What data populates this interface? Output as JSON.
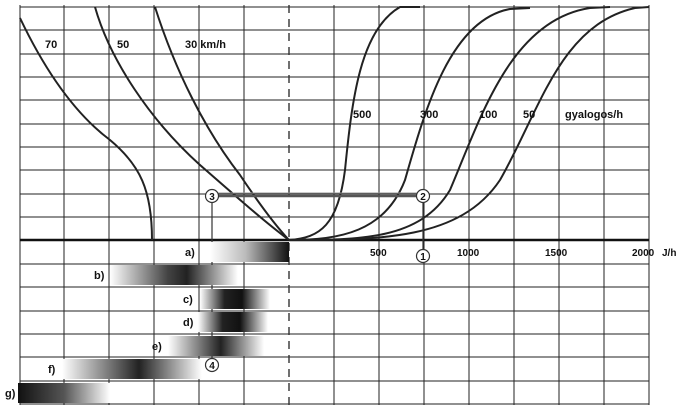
{
  "speed_labels": [
    "70",
    "50",
    "30 km/h"
  ],
  "ped_labels": [
    "500",
    "300",
    "100",
    "50",
    "gyalogos/h"
  ],
  "x_ticks": [
    "500",
    "1000",
    "1500",
    "2000"
  ],
  "x_unit": "J/h",
  "markers": [
    "1",
    "2",
    "3",
    "4"
  ],
  "rows": [
    "a)",
    "b)",
    "c)",
    "d)",
    "e)",
    "f)",
    "g)"
  ]
}
